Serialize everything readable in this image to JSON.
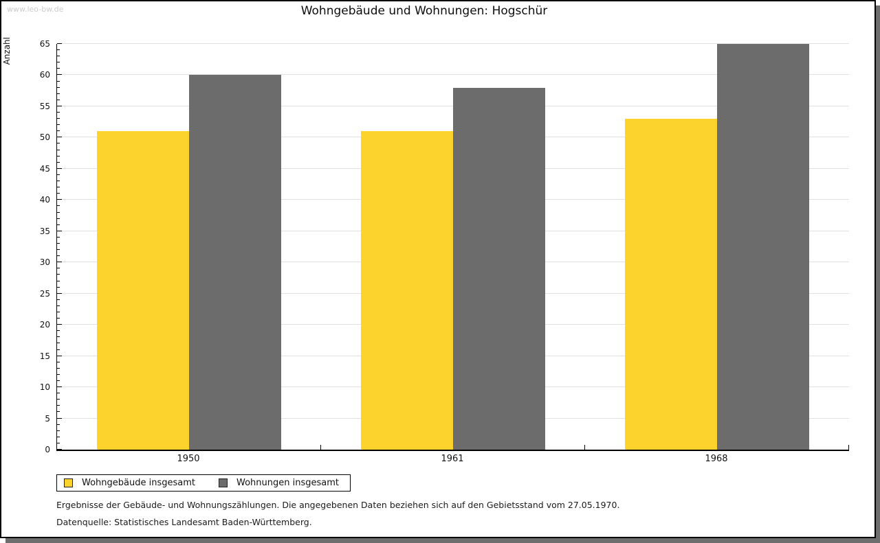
{
  "watermark": "www.leo-bw.de",
  "header": {
    "title": "Wohngebäude und Wohnungen: Hogschür"
  },
  "colors": {
    "series_yellow": "#fcd32c",
    "series_gray": "#6c6c6c",
    "gridline": "#e0e0e0",
    "watermark": "#cccccc",
    "frame_shadow": "#6e6e6e"
  },
  "chart_data": {
    "type": "bar",
    "title": "Wohngebäude und Wohnungen: Hogschür",
    "categories": [
      "1950",
      "1961",
      "1968"
    ],
    "series": [
      {
        "name": "Wohngebäude insgesamt",
        "color": "#fcd32c",
        "values": [
          51,
          51,
          53
        ]
      },
      {
        "name": "Wohnungen insgesamt",
        "color": "#6c6c6c",
        "values": [
          60,
          58,
          65
        ]
      }
    ],
    "xlabel": "",
    "ylabel": "Anzahl",
    "ylim": [
      0,
      65
    ],
    "ytick_major_step": 5,
    "ytick_minor_step": 1,
    "grid": true,
    "legend_position": "bottom-left"
  },
  "footnotes": {
    "line1": "Ergebnisse der Gebäude- und Wohnungszählungen. Die angegebenen Daten beziehen sich auf den Gebietsstand vom 27.05.1970.",
    "line2": "Datenquelle: Statistisches Landesamt Baden-Württemberg."
  }
}
